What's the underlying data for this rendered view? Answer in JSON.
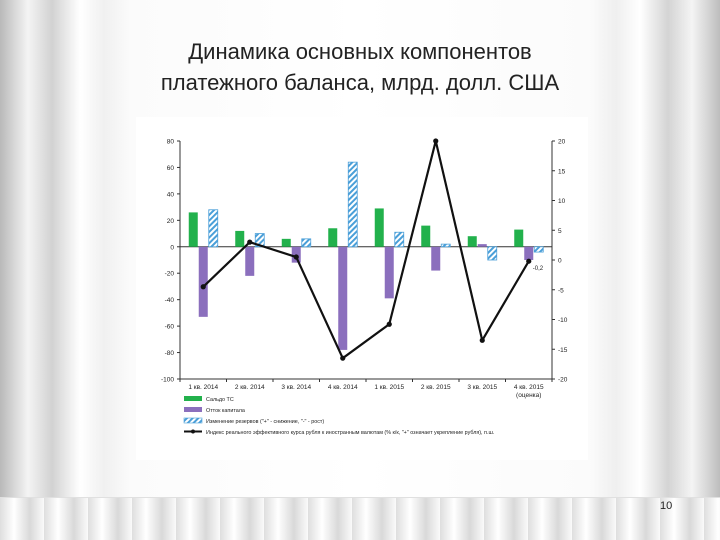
{
  "slide": {
    "title_line1": "Динамика основных компонентов",
    "title_line2": "платежного баланса, млрд. долл. США",
    "page_number": "10"
  },
  "chart_data": {
    "type": "bar",
    "title": "",
    "categories": [
      "1 кв. 2014",
      "2 кв. 2014",
      "3 кв. 2014",
      "4 кв. 2014",
      "1 кв. 2015",
      "2 кв. 2015",
      "3 кв. 2015",
      "4 кв. 2015"
    ],
    "category_note": "(оценка)",
    "y_left": {
      "ylim": [
        -100,
        80
      ],
      "ticks": [
        80,
        60,
        40,
        20,
        0,
        -20,
        -40,
        -60,
        -80,
        -100
      ]
    },
    "y_right": {
      "ylim": [
        -20,
        20
      ],
      "ticks": [
        20,
        15,
        10,
        5,
        0,
        -5,
        -10,
        -15,
        -20
      ]
    },
    "grid": false,
    "legend_position": "bottom",
    "series": [
      {
        "name": "Сальдо ТС",
        "type": "bar",
        "axis": "left",
        "color": "#22b14c",
        "pattern": "solid",
        "values": [
          26,
          12,
          6,
          14,
          29,
          16,
          8,
          13
        ]
      },
      {
        "name": "Отток капитала",
        "type": "bar",
        "axis": "left",
        "color": "#8b6fbd",
        "pattern": "solid",
        "values": [
          -53,
          -22,
          -12,
          -78,
          -39,
          -18,
          2,
          -10
        ]
      },
      {
        "name": "Изменение резервов (\"+\" - снижение, \"-\" - рост)",
        "type": "bar",
        "axis": "left",
        "color": "#4a9fd8",
        "pattern": "hatched",
        "values": [
          28,
          10,
          6,
          64,
          11,
          2,
          -10,
          -4
        ]
      },
      {
        "name": "Индекс реального эффективного курса рубля к иностранным валютам (% к/к, \"+\" означает укрепление рубля), п.ш.",
        "type": "line",
        "axis": "right",
        "color": "#111111",
        "values": [
          -4.5,
          3,
          0.5,
          -16.5,
          -10.8,
          20,
          -13.5,
          -0.2
        ]
      }
    ],
    "annotations": [
      {
        "text": "-0,2",
        "category_index": 7,
        "series_index": 3
      }
    ]
  }
}
